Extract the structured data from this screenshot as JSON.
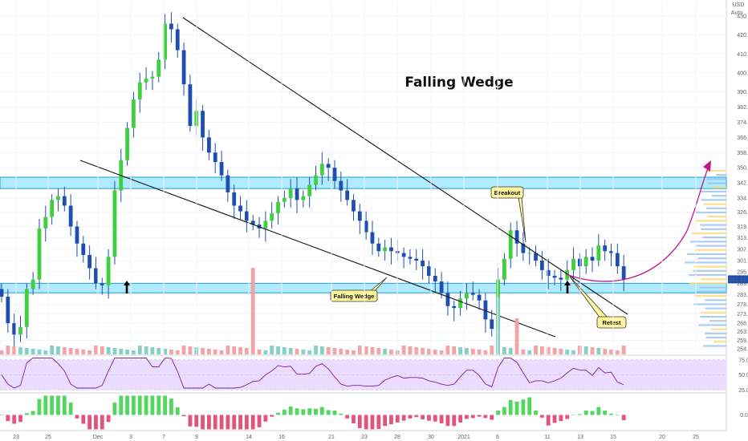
{
  "currency": "USD",
  "settings_label": "Auto",
  "last_price_label": "291.12",
  "colors": {
    "up": "#3fd03f",
    "down": "#1f4fae",
    "zone_fill": "#a8e8ff",
    "zone_stroke": "#2aa5d8",
    "vol_up": "#7fcfc0",
    "vol_down": "#f2a0a0",
    "rsi_band": "#ecdcff",
    "rsi_line": "#7b1fa2",
    "macd_up": "#3ed24c",
    "macd_down": "#e0406e",
    "arrow": "#c2188e",
    "vpvr_up": "#9fc4ec",
    "vpvr_down": "#ffd97a"
  },
  "annotations": {
    "title": "Falling Wedge",
    "wedge_label": "Falling Wedge",
    "breakout_label": "Breakout",
    "retest_label": "Retest"
  },
  "chart_data": [
    {
      "type": "candlestick",
      "title": "",
      "y_ticks": [
        430,
        420,
        410,
        400,
        390,
        382,
        374,
        366,
        358,
        350,
        342,
        334,
        326.5,
        319,
        313,
        307,
        301,
        295,
        289,
        283,
        278,
        273,
        268,
        263.5,
        259,
        254.5
      ],
      "ylim": [
        251,
        436
      ],
      "x_ticks": [
        "23",
        "25",
        "Dec",
        "3",
        "7",
        "9",
        "14",
        "16",
        "21",
        "23",
        "28",
        "30",
        "2021",
        "6",
        "11",
        "13",
        "15",
        "20",
        "25"
      ],
      "close_path": [
        282,
        268,
        262,
        266,
        286,
        291,
        318,
        324,
        333,
        335,
        330,
        319,
        310,
        304,
        297,
        289,
        288,
        303,
        338,
        354,
        371,
        386,
        395,
        397,
        398,
        407,
        426,
        423,
        412,
        394,
        372,
        380,
        366,
        358,
        353,
        346,
        337,
        330,
        327,
        322,
        320,
        318,
        322,
        326,
        332,
        334,
        339,
        333,
        335,
        341,
        346,
        352,
        350,
        343,
        338,
        333,
        327,
        322,
        316,
        310,
        306,
        308,
        306,
        305,
        303,
        302,
        301,
        298,
        293,
        290,
        284,
        277,
        276,
        281,
        284,
        283,
        280,
        270,
        265,
        291,
        302,
        317,
        310,
        305,
        305,
        301,
        296,
        293,
        292,
        291,
        296,
        302,
        298,
        303,
        301,
        309,
        306,
        305,
        298,
        291
      ],
      "support_zone": [
        284,
        289
      ],
      "resistance_zone": [
        339,
        345
      ],
      "projected_target": 340
    },
    {
      "type": "bar",
      "title": "",
      "series": [
        {
          "values": [
            1,
            1,
            1,
            1,
            1,
            1,
            1,
            1,
            1,
            1,
            1,
            1,
            1,
            1,
            1,
            1,
            1,
            1,
            1,
            1,
            1,
            1,
            1,
            1,
            1,
            1,
            1,
            1,
            1,
            1,
            1,
            1,
            1,
            1,
            1,
            1,
            1,
            1,
            1,
            1,
            1,
            1,
            1,
            1,
            1,
            1,
            1,
            1,
            1,
            1,
            1,
            1,
            1,
            1,
            1,
            1,
            1,
            1,
            1,
            1,
            1,
            1,
            1,
            1,
            1,
            1,
            1,
            1,
            1,
            1,
            1,
            1,
            1,
            1,
            1,
            1,
            1,
            1,
            1,
            1,
            1,
            1,
            1,
            1,
            1,
            1,
            1,
            1,
            1,
            1,
            1,
            1,
            1,
            1,
            1,
            1,
            1,
            1,
            1,
            1
          ]
        }
      ],
      "spikes": [
        {
          "index": 40,
          "value": 12
        },
        {
          "index": 79,
          "value": 8
        },
        {
          "index": 82,
          "value": 5
        }
      ]
    },
    {
      "type": "line",
      "title": "",
      "y_ticks": [
        75.0,
        50.0,
        25.0
      ],
      "ylim": [
        20,
        80
      ]
    },
    {
      "type": "bar",
      "title": "",
      "y_ticks": [
        0.0
      ],
      "series": [
        {
          "name": "",
          "values": []
        }
      ]
    }
  ]
}
